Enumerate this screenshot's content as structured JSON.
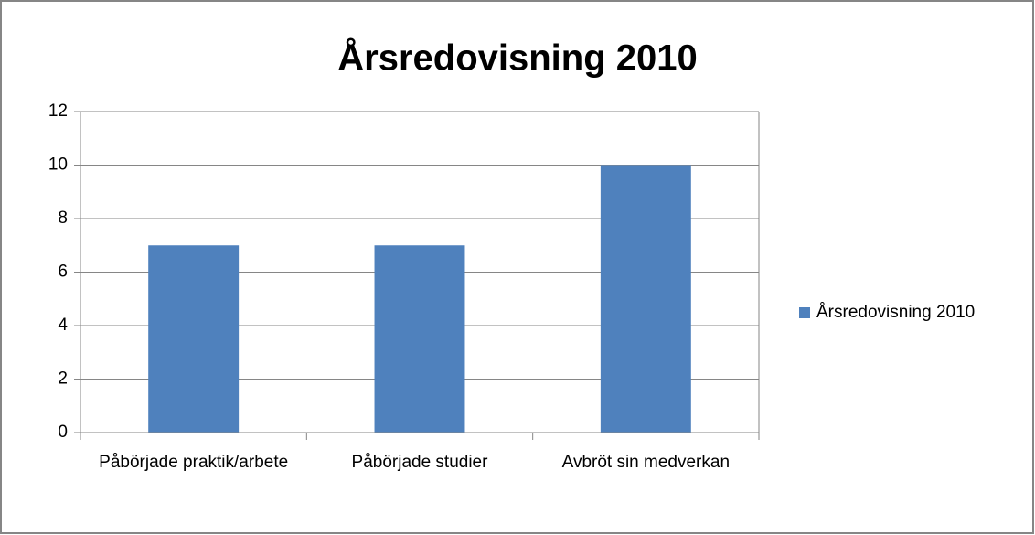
{
  "chart_data": {
    "type": "bar",
    "title": "Årsredovisning 2010",
    "categories": [
      "Påbörjade praktik/arbete",
      "Påbörjade studier",
      "Avbröt sin medverkan"
    ],
    "series": [
      {
        "name": "Årsredovisning 2010",
        "color": "#4f81bd",
        "values": [
          7,
          7,
          10
        ]
      }
    ],
    "ylim": [
      0,
      12
    ],
    "yticks": [
      0,
      2,
      4,
      6,
      8,
      10,
      12
    ],
    "grid": true,
    "legend": "right"
  }
}
